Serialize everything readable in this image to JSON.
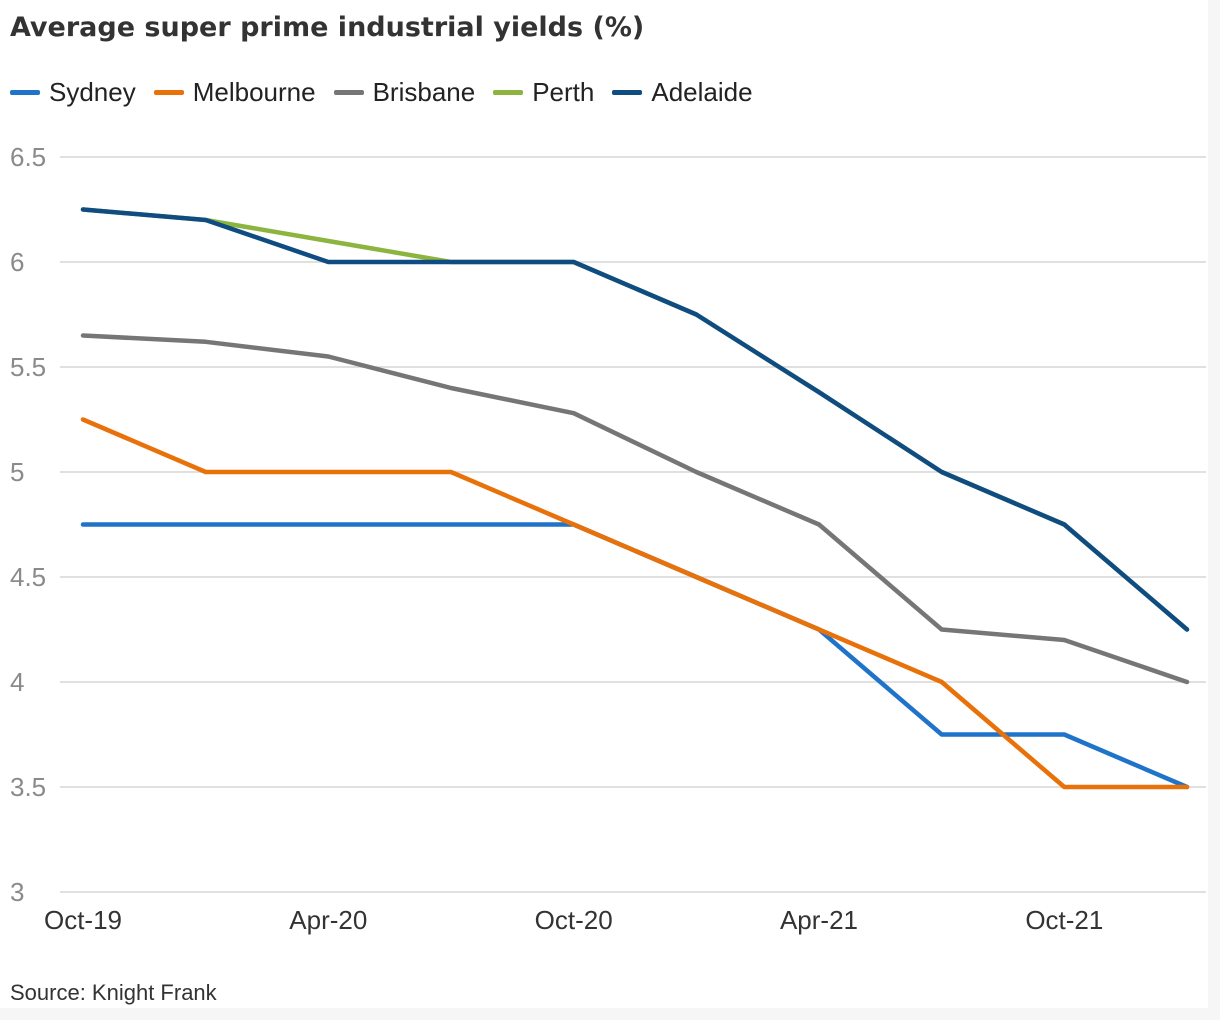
{
  "chart_data": {
    "type": "line",
    "title": "Average super prime industrial yields (%)",
    "source": "Source: Knight Frank",
    "xlabel": "",
    "ylabel": "",
    "x": [
      "Oct-19",
      "Jan-20",
      "Apr-20",
      "Jul-20",
      "Oct-20",
      "Jan-21",
      "Apr-21",
      "Jul-21",
      "Oct-21",
      "Jan-22"
    ],
    "x_tick_labels": [
      "Oct-19",
      "Apr-20",
      "Oct-20",
      "Apr-21",
      "Oct-21"
    ],
    "ylim": [
      3,
      6.5
    ],
    "y_ticks": [
      "3",
      "3.5",
      "4",
      "4.5",
      "5",
      "5.5",
      "6",
      "6.5"
    ],
    "grid": true,
    "legend_position": "top-left",
    "series": [
      {
        "name": "Sydney",
        "color": "#1f74c9",
        "values": [
          4.75,
          4.75,
          4.75,
          4.75,
          4.75,
          4.5,
          4.25,
          3.75,
          3.75,
          3.5
        ]
      },
      {
        "name": "Melbourne",
        "color": "#e8710a",
        "values": [
          5.25,
          5.0,
          5.0,
          5.0,
          4.75,
          4.5,
          4.25,
          4.0,
          3.5,
          3.5
        ]
      },
      {
        "name": "Brisbane",
        "color": "#767676",
        "values": [
          5.65,
          5.62,
          5.55,
          5.4,
          5.28,
          5.0,
          4.75,
          4.25,
          4.2,
          4.0
        ]
      },
      {
        "name": "Perth",
        "color": "#8db43e",
        "values": [
          6.25,
          6.2,
          6.1,
          6.0,
          6.0,
          5.75,
          5.38,
          5.0,
          4.75,
          4.25
        ]
      },
      {
        "name": "Adelaide",
        "color": "#0f4c81",
        "values": [
          6.25,
          6.2,
          6.0,
          6.0,
          6.0,
          5.75,
          5.38,
          5.0,
          4.75,
          4.25
        ]
      }
    ]
  }
}
